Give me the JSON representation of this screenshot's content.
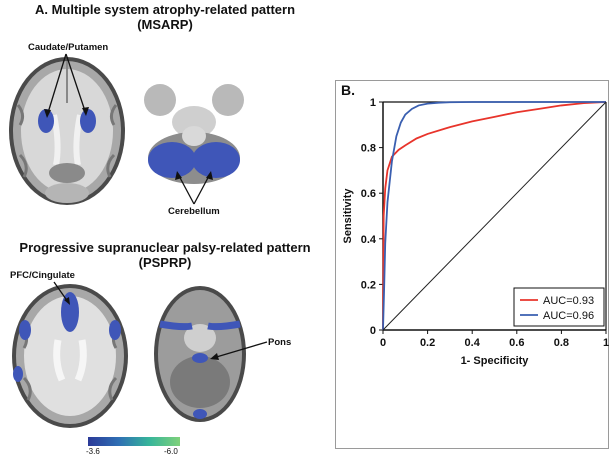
{
  "panel_a": {
    "letter_title": "A. Multiple system atrophy-related pattern",
    "abbrev": "(MSARP)",
    "label_caudate": "Caudate/Putamen",
    "label_cerebellum": "Cerebellum"
  },
  "panel_psp": {
    "title": "Progressive supranuclear palsy-related pattern",
    "abbrev": "(PSPRP)",
    "label_pfc": "PFC/Cingulate",
    "label_pons": "Pons"
  },
  "colorbar": {
    "min_label": "-3.6",
    "max_label": "-6.0",
    "colors": [
      "#2b3a98",
      "#2f6fb4",
      "#36b59a",
      "#7fd17a"
    ]
  },
  "panel_b": {
    "letter": "B."
  },
  "chart_data": {
    "type": "line",
    "xlabel": "1- Specificity",
    "ylabel": "Sensitivity",
    "xlim": [
      0,
      1
    ],
    "ylim": [
      0,
      1
    ],
    "xticks": [
      "0",
      "0.2",
      "0.4",
      "0.6",
      "0.8",
      "1"
    ],
    "yticks": [
      "0",
      "0.2",
      "0.4",
      "0.6",
      "0.8",
      "1"
    ],
    "legend_position": "bottom-right",
    "series": [
      {
        "name": "AUC=0.93",
        "color": "#e8342b",
        "x": [
          0,
          0.003,
          0.01,
          0.02,
          0.04,
          0.07,
          0.1,
          0.15,
          0.2,
          0.3,
          0.4,
          0.5,
          0.6,
          0.7,
          0.8,
          0.9,
          1.0
        ],
        "y": [
          0,
          0.5,
          0.62,
          0.7,
          0.76,
          0.79,
          0.81,
          0.84,
          0.86,
          0.89,
          0.915,
          0.935,
          0.955,
          0.97,
          0.985,
          0.995,
          1.0
        ]
      },
      {
        "name": "AUC=0.96",
        "color": "#3a5fb0",
        "x": [
          0,
          0.005,
          0.01,
          0.02,
          0.04,
          0.06,
          0.08,
          0.1,
          0.13,
          0.16,
          0.2,
          0.25,
          0.3,
          0.4,
          0.5,
          1.0
        ],
        "y": [
          0,
          0.18,
          0.38,
          0.56,
          0.74,
          0.85,
          0.91,
          0.945,
          0.97,
          0.985,
          0.993,
          0.997,
          0.999,
          1.0,
          1.0,
          1.0
        ]
      },
      {
        "name": "",
        "color": "#222222",
        "x": [
          0,
          1
        ],
        "y": [
          0,
          1
        ]
      }
    ]
  }
}
